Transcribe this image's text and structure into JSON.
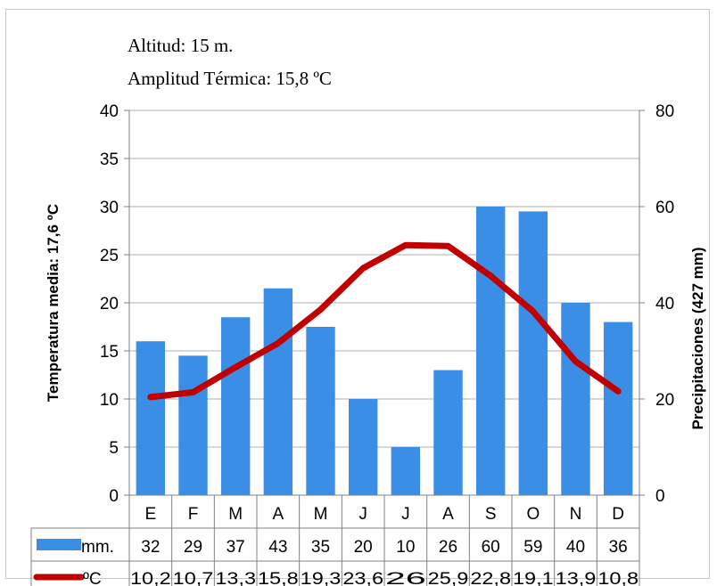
{
  "chart_data": {
    "type": "bar",
    "subtitle_lines": [
      "Altitud: 15 m.",
      "Amplitud Térmica: 15,8 ºC"
    ],
    "categories": [
      "E",
      "F",
      "M",
      "A",
      "M",
      "J",
      "J",
      "A",
      "S",
      "O",
      "N",
      "D"
    ],
    "ylabel_left": "Temperatura media: 17,6 ºC",
    "ylabel_right": "Precipitaciones (427 mm)",
    "ylim_left": [
      0,
      40
    ],
    "ylim_right": [
      0,
      80
    ],
    "yticks_left": [
      "0",
      "5",
      "10",
      "15",
      "20",
      "25",
      "30",
      "35",
      "40"
    ],
    "yticks_right": [
      "0",
      "20",
      "40",
      "60",
      "80"
    ],
    "grid": true,
    "series": [
      {
        "name": "mm.",
        "type": "bar",
        "axis": "right",
        "color": "#3a8ee6",
        "values": [
          32,
          29,
          37,
          43,
          35,
          20,
          10,
          26,
          60,
          59,
          40,
          36
        ],
        "labels": [
          "32",
          "29",
          "37",
          "43",
          "35",
          "20",
          "10",
          "26",
          "60",
          "59",
          "40",
          "36"
        ]
      },
      {
        "name": "ºC",
        "type": "line",
        "axis": "left",
        "color": "#c00000",
        "values": [
          10.2,
          10.7,
          13.3,
          15.8,
          19.3,
          23.6,
          26,
          25.9,
          22.8,
          19.1,
          13.9,
          10.8
        ],
        "labels": [
          "10,2",
          "10,7",
          "13,3",
          "15,8",
          "19,3",
          "23,6",
          "26",
          "25,9",
          "22,8",
          "19,1",
          "13,9",
          "10,8"
        ]
      }
    ]
  }
}
